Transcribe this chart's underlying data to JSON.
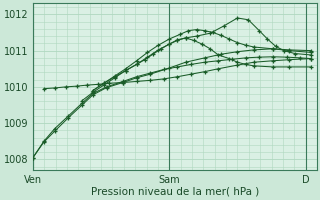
{
  "xlabel": "Pression niveau de la mer( hPa )",
  "background_color": "#cce8d8",
  "plot_bg_color": "#daf0e4",
  "grid_color": "#b0d8c0",
  "line_color": "#1a5c28",
  "ylim": [
    1007.7,
    1012.3
  ],
  "yticks": [
    1008,
    1009,
    1010,
    1011,
    1012
  ],
  "xlim": [
    0.0,
    1.04
  ],
  "day_lines": [
    0.0,
    0.5,
    1.0
  ],
  "x_labels": [
    [
      0.0,
      "Ven"
    ],
    [
      0.5,
      "Sam"
    ],
    [
      1.0,
      "D"
    ]
  ],
  "series": [
    [
      [
        0.0,
        1008.05
      ],
      [
        0.04,
        1008.5
      ],
      [
        0.08,
        1008.85
      ],
      [
        0.13,
        1009.2
      ],
      [
        0.18,
        1009.55
      ],
      [
        0.22,
        1009.82
      ],
      [
        0.27,
        1010.0
      ],
      [
        0.33,
        1010.15
      ],
      [
        0.38,
        1010.28
      ],
      [
        0.43,
        1010.38
      ],
      [
        0.48,
        1010.48
      ],
      [
        0.53,
        1010.55
      ],
      [
        0.58,
        1010.62
      ],
      [
        0.63,
        1010.68
      ],
      [
        0.68,
        1010.72
      ],
      [
        0.73,
        1010.76
      ],
      [
        0.78,
        1010.8
      ],
      [
        0.83,
        1010.82
      ],
      [
        0.88,
        1010.83
      ],
      [
        0.93,
        1010.82
      ],
      [
        0.98,
        1010.8
      ],
      [
        1.02,
        1010.78
      ]
    ],
    [
      [
        0.0,
        1008.05
      ],
      [
        0.04,
        1008.48
      ],
      [
        0.08,
        1008.78
      ],
      [
        0.13,
        1009.15
      ],
      [
        0.18,
        1009.5
      ],
      [
        0.22,
        1009.78
      ],
      [
        0.27,
        1009.98
      ],
      [
        0.33,
        1010.12
      ],
      [
        0.38,
        1010.25
      ],
      [
        0.43,
        1010.35
      ],
      [
        0.5,
        1010.52
      ],
      [
        0.56,
        1010.68
      ],
      [
        0.63,
        1010.8
      ],
      [
        0.69,
        1010.9
      ],
      [
        0.75,
        1010.97
      ],
      [
        0.81,
        1011.02
      ],
      [
        0.88,
        1011.05
      ],
      [
        0.94,
        1011.02
      ],
      [
        1.02,
        1011.0
      ]
    ],
    [
      [
        0.04,
        1009.95
      ],
      [
        0.08,
        1009.97
      ],
      [
        0.12,
        1010.0
      ],
      [
        0.16,
        1010.02
      ],
      [
        0.2,
        1010.05
      ],
      [
        0.24,
        1010.07
      ],
      [
        0.28,
        1010.1
      ],
      [
        0.33,
        1010.12
      ],
      [
        0.38,
        1010.15
      ],
      [
        0.43,
        1010.18
      ],
      [
        0.48,
        1010.22
      ],
      [
        0.53,
        1010.28
      ],
      [
        0.58,
        1010.35
      ],
      [
        0.63,
        1010.42
      ],
      [
        0.68,
        1010.5
      ],
      [
        0.75,
        1010.6
      ],
      [
        0.81,
        1010.68
      ],
      [
        0.88,
        1010.72
      ],
      [
        0.94,
        1010.75
      ],
      [
        1.02,
        1010.78
      ]
    ],
    [
      [
        0.18,
        1009.62
      ],
      [
        0.22,
        1009.85
      ],
      [
        0.26,
        1010.05
      ],
      [
        0.3,
        1010.25
      ],
      [
        0.34,
        1010.45
      ],
      [
        0.38,
        1010.62
      ],
      [
        0.41,
        1010.75
      ],
      [
        0.44,
        1010.9
      ],
      [
        0.47,
        1011.05
      ],
      [
        0.5,
        1011.18
      ],
      [
        0.53,
        1011.3
      ],
      [
        0.56,
        1011.35
      ],
      [
        0.59,
        1011.28
      ],
      [
        0.62,
        1011.18
      ],
      [
        0.65,
        1011.05
      ],
      [
        0.68,
        1010.88
      ],
      [
        0.72,
        1010.78
      ],
      [
        0.75,
        1010.68
      ],
      [
        0.78,
        1010.62
      ],
      [
        0.81,
        1010.58
      ],
      [
        0.88,
        1010.55
      ],
      [
        0.94,
        1010.55
      ],
      [
        1.02,
        1010.55
      ]
    ],
    [
      [
        0.22,
        1009.9
      ],
      [
        0.26,
        1010.1
      ],
      [
        0.3,
        1010.3
      ],
      [
        0.34,
        1010.5
      ],
      [
        0.38,
        1010.72
      ],
      [
        0.42,
        1010.95
      ],
      [
        0.46,
        1011.15
      ],
      [
        0.5,
        1011.32
      ],
      [
        0.54,
        1011.45
      ],
      [
        0.57,
        1011.55
      ],
      [
        0.6,
        1011.58
      ],
      [
        0.63,
        1011.55
      ],
      [
        0.66,
        1011.5
      ],
      [
        0.69,
        1011.42
      ],
      [
        0.72,
        1011.32
      ],
      [
        0.75,
        1011.22
      ],
      [
        0.78,
        1011.15
      ],
      [
        0.81,
        1011.1
      ],
      [
        0.88,
        1011.05
      ],
      [
        0.94,
        1011.0
      ],
      [
        1.02,
        1010.95
      ]
    ],
    [
      [
        0.22,
        1009.9
      ],
      [
        0.26,
        1010.1
      ],
      [
        0.3,
        1010.28
      ],
      [
        0.34,
        1010.45
      ],
      [
        0.38,
        1010.62
      ],
      [
        0.42,
        1010.82
      ],
      [
        0.46,
        1011.02
      ],
      [
        0.5,
        1011.18
      ],
      [
        0.53,
        1011.28
      ],
      [
        0.56,
        1011.35
      ],
      [
        0.6,
        1011.4
      ],
      [
        0.65,
        1011.48
      ],
      [
        0.7,
        1011.68
      ],
      [
        0.75,
        1011.9
      ],
      [
        0.79,
        1011.85
      ],
      [
        0.83,
        1011.55
      ],
      [
        0.86,
        1011.32
      ],
      [
        0.89,
        1011.12
      ],
      [
        0.92,
        1011.0
      ],
      [
        0.96,
        1010.92
      ],
      [
        1.02,
        1010.88
      ]
    ]
  ]
}
